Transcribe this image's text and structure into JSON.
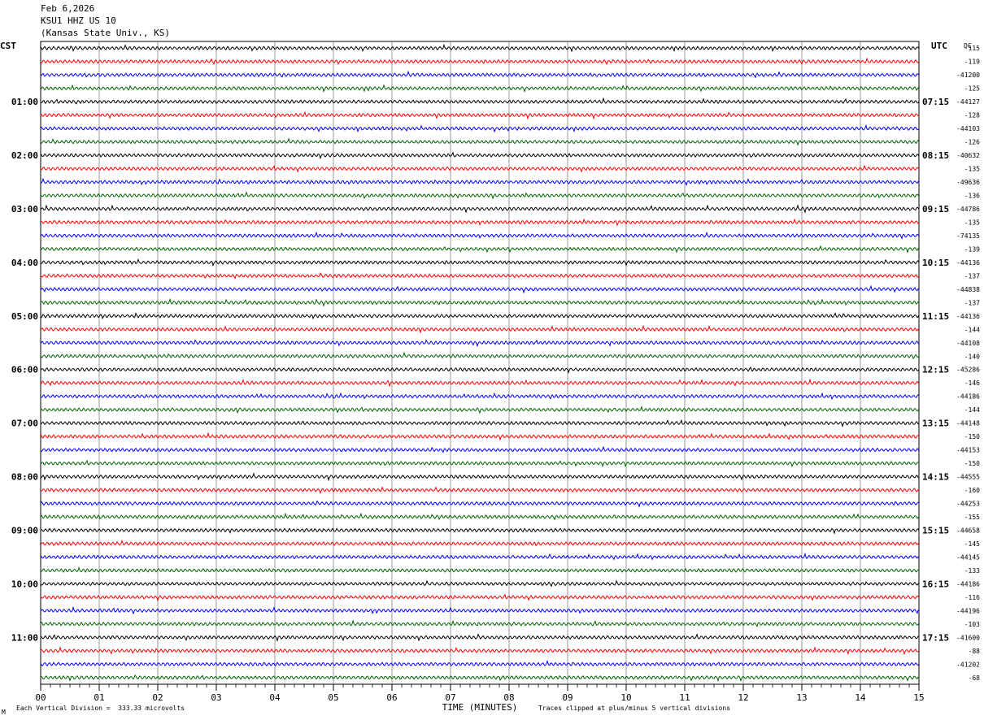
{
  "header": {
    "date": "Feb 6,2026",
    "station": "KSU1 HHZ US 10",
    "location": "(Kansas State Univ., KS)"
  },
  "left_axis_label": "CST",
  "right_axis_label": "UTC",
  "dc_label": "DC",
  "footer": {
    "scale_note": "Each Vertical Division =  333.33 microvolts",
    "clip_note": "Traces clipped at plus/minus 5 vertical divisions",
    "corner_mark": "M"
  },
  "colors": {
    "trace_cycle": [
      "#000000",
      "#ff0000",
      "#0000ff",
      "#006400"
    ],
    "grid": "#808080"
  },
  "chart_data": {
    "type": "line",
    "title": "",
    "xlabel": "TIME (MINUTES)",
    "ylabel": "",
    "xlim": [
      0,
      15
    ],
    "x_ticks": [
      "00",
      "01",
      "02",
      "03",
      "04",
      "05",
      "06",
      "07",
      "08",
      "09",
      "10",
      "11",
      "12",
      "13",
      "14",
      "15"
    ],
    "trace_count": 48,
    "traces_per_hour": 4,
    "left_hour_labels": [
      "01:00",
      "02:00",
      "03:00",
      "04:00",
      "05:00",
      "06:00",
      "07:00",
      "08:00",
      "09:00",
      "10:00",
      "11:00"
    ],
    "right_hour_labels": [
      "07:15",
      "08:15",
      "09:15",
      "10:15",
      "11:15",
      "12:15",
      "13:15",
      "14:15",
      "15:15",
      "16:15",
      "17:15"
    ],
    "dc_offsets": [
      "-115",
      "-119",
      "-41200",
      "-125",
      "-44127",
      "-128",
      "-44103",
      "-126",
      "-40632",
      "-135",
      "-49636",
      "-136",
      "-44786",
      "-135",
      "-74135",
      "-139",
      "-44136",
      "-137",
      "-44838",
      "-137",
      "-44136",
      "-144",
      "-44108",
      "-140",
      "-45286",
      "-146",
      "-44186",
      "-144",
      "-44148",
      "-150",
      "-44153",
      "-150",
      "-44555",
      "-160",
      "-44253",
      "-155",
      "-44658",
      "-145",
      "-44145",
      "-133",
      "-44186",
      "-116",
      "-44196",
      "-103",
      "-41600",
      "-88",
      "-41202",
      "-68"
    ]
  }
}
